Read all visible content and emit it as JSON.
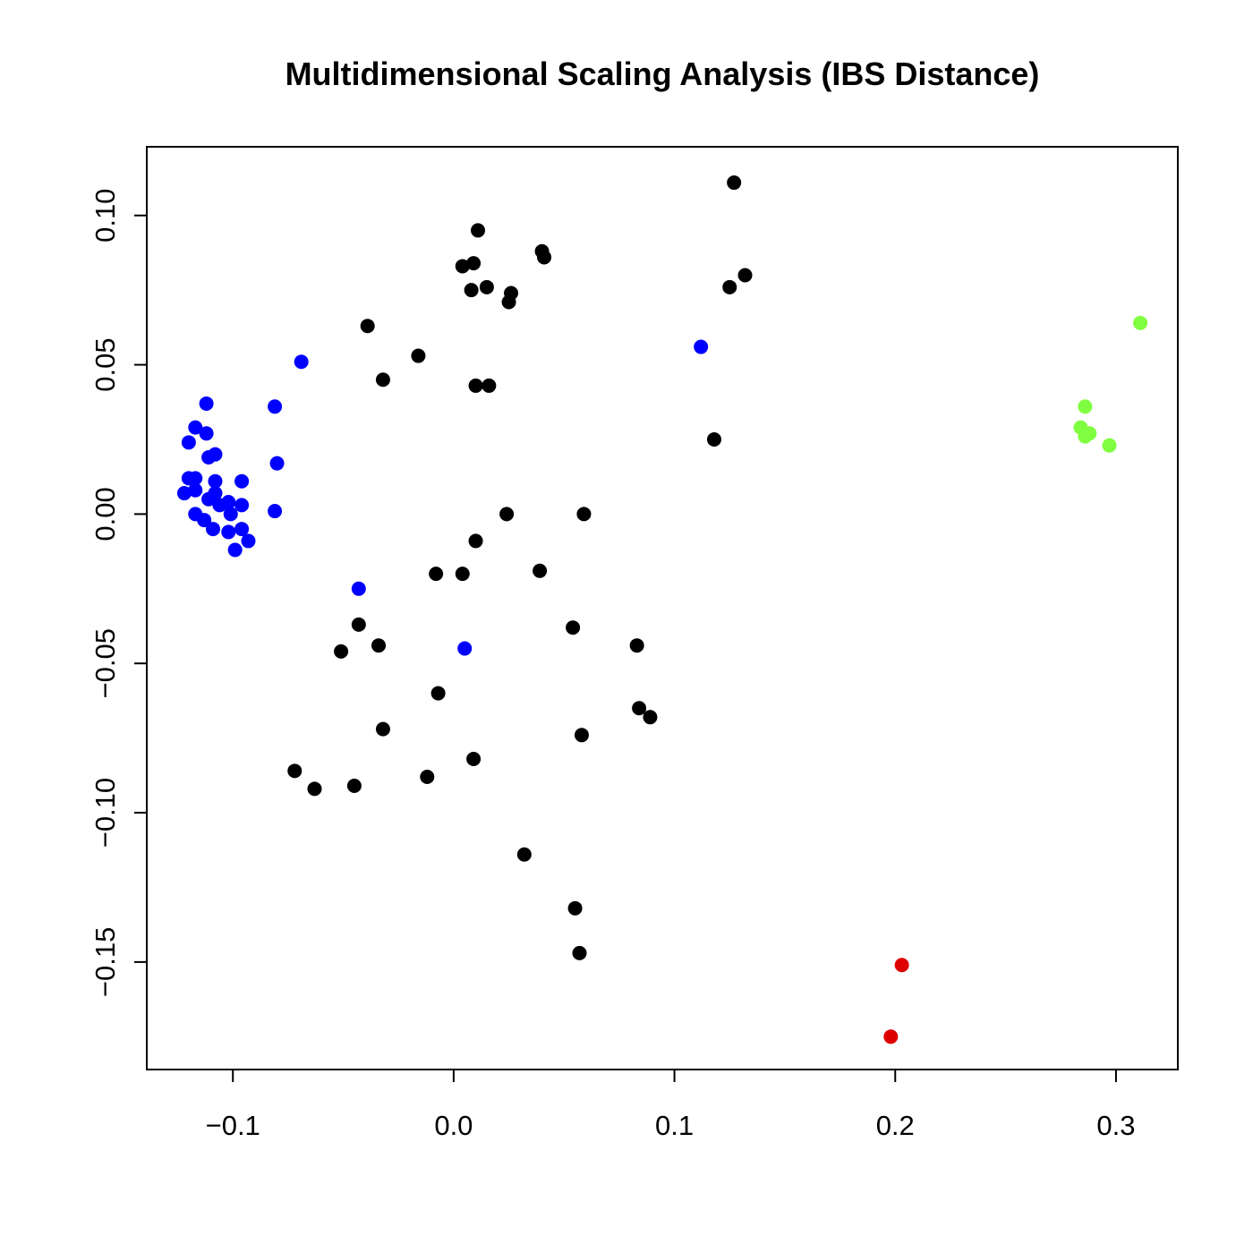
{
  "chart_data": {
    "type": "scatter",
    "title": "Multidimensional Scaling Analysis (IBS Distance)",
    "xlabel": "",
    "ylabel": "",
    "xlim": [
      -0.139,
      0.328
    ],
    "ylim": [
      -0.186,
      0.123
    ],
    "xticks": [
      -0.1,
      0.0,
      0.1,
      0.2,
      0.3
    ],
    "xtick_labels": [
      "−0.1",
      "0.0",
      "0.1",
      "0.2",
      "0.3"
    ],
    "yticks": [
      -0.15,
      -0.1,
      -0.05,
      0.0,
      0.05,
      0.1
    ],
    "ytick_labels": [
      "−0.15",
      "−0.10",
      "−0.05",
      "0.00",
      "0.05",
      "0.10"
    ],
    "grid": false,
    "legend": "none",
    "series": [
      {
        "color": "#000000",
        "points": [
          [
            0.127,
            0.111
          ],
          [
            0.011,
            0.095
          ],
          [
            0.04,
            0.088
          ],
          [
            0.041,
            0.086
          ],
          [
            0.004,
            0.083
          ],
          [
            0.009,
            0.084
          ],
          [
            0.132,
            0.08
          ],
          [
            0.125,
            0.076
          ],
          [
            0.015,
            0.076
          ],
          [
            0.008,
            0.075
          ],
          [
            0.026,
            0.074
          ],
          [
            0.025,
            0.071
          ],
          [
            -0.039,
            0.063
          ],
          [
            -0.016,
            0.053
          ],
          [
            -0.032,
            0.045
          ],
          [
            0.01,
            0.043
          ],
          [
            0.016,
            0.043
          ],
          [
            0.118,
            0.025
          ],
          [
            0.024,
            0.0
          ],
          [
            0.059,
            0.0
          ],
          [
            0.01,
            -0.009
          ],
          [
            0.039,
            -0.019
          ],
          [
            0.004,
            -0.02
          ],
          [
            -0.008,
            -0.02
          ],
          [
            -0.043,
            -0.037
          ],
          [
            0.054,
            -0.038
          ],
          [
            -0.034,
            -0.044
          ],
          [
            0.083,
            -0.044
          ],
          [
            -0.051,
            -0.046
          ],
          [
            -0.007,
            -0.06
          ],
          [
            0.084,
            -0.065
          ],
          [
            0.089,
            -0.068
          ],
          [
            -0.032,
            -0.072
          ],
          [
            0.058,
            -0.074
          ],
          [
            0.009,
            -0.082
          ],
          [
            -0.072,
            -0.086
          ],
          [
            -0.012,
            -0.088
          ],
          [
            -0.045,
            -0.091
          ],
          [
            -0.063,
            -0.092
          ],
          [
            0.032,
            -0.114
          ],
          [
            0.055,
            -0.132
          ],
          [
            0.057,
            -0.147
          ]
        ]
      },
      {
        "color": "#0000ff",
        "points": [
          [
            0.112,
            0.056
          ],
          [
            -0.069,
            0.051
          ],
          [
            -0.112,
            0.037
          ],
          [
            -0.081,
            0.036
          ],
          [
            -0.117,
            0.029
          ],
          [
            -0.112,
            0.027
          ],
          [
            -0.12,
            0.024
          ],
          [
            -0.108,
            0.02
          ],
          [
            -0.111,
            0.019
          ],
          [
            -0.08,
            0.017
          ],
          [
            -0.12,
            0.012
          ],
          [
            -0.117,
            0.012
          ],
          [
            -0.108,
            0.011
          ],
          [
            -0.096,
            0.011
          ],
          [
            -0.122,
            0.007
          ],
          [
            -0.117,
            0.008
          ],
          [
            -0.108,
            0.007
          ],
          [
            -0.111,
            0.005
          ],
          [
            -0.102,
            0.004
          ],
          [
            -0.106,
            0.003
          ],
          [
            -0.096,
            0.003
          ],
          [
            -0.081,
            0.001
          ],
          [
            -0.117,
            0.0
          ],
          [
            -0.101,
            0.0
          ],
          [
            -0.113,
            -0.002
          ],
          [
            -0.109,
            -0.005
          ],
          [
            -0.096,
            -0.005
          ],
          [
            -0.102,
            -0.006
          ],
          [
            -0.093,
            -0.009
          ],
          [
            -0.099,
            -0.012
          ],
          [
            -0.043,
            -0.025
          ],
          [
            0.005,
            -0.045
          ]
        ]
      },
      {
        "color": "#7fff3f",
        "points": [
          [
            0.311,
            0.064
          ],
          [
            0.286,
            0.036
          ],
          [
            0.284,
            0.029
          ],
          [
            0.288,
            0.027
          ],
          [
            0.286,
            0.026
          ],
          [
            0.297,
            0.023
          ]
        ]
      },
      {
        "color": "#dd0000",
        "points": [
          [
            0.203,
            -0.151
          ],
          [
            0.198,
            -0.175
          ]
        ]
      }
    ]
  }
}
